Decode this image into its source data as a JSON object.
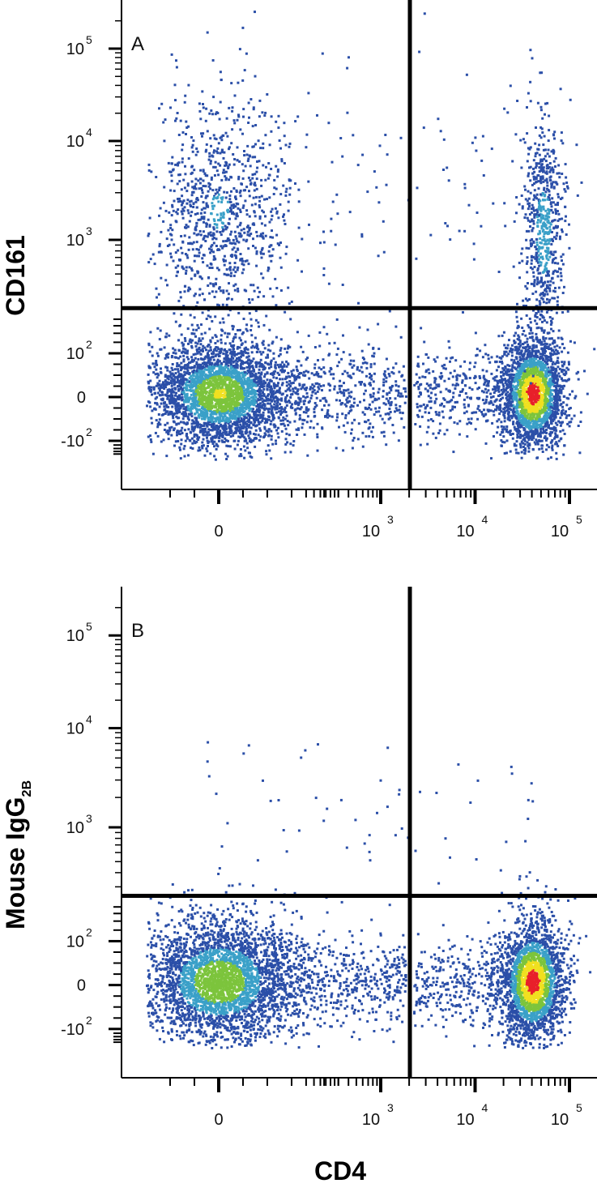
{
  "chart_data": [
    {
      "type": "scatter",
      "panel_label": "A",
      "xlabel": "CD4",
      "ylabel": "CD161",
      "ylabel_sub": "",
      "x_scale": "biexponential",
      "y_scale": "biexponential",
      "x_ticks": [
        {
          "value": 0,
          "base": "0",
          "exp": ""
        },
        {
          "value": 1000,
          "base": "10",
          "exp": "3"
        },
        {
          "value": 10000,
          "base": "10",
          "exp": "4"
        },
        {
          "value": 100000,
          "base": "10",
          "exp": "5"
        }
      ],
      "y_ticks": [
        {
          "value": -100,
          "base": "-10",
          "exp": "2"
        },
        {
          "value": 0,
          "base": "0",
          "exp": ""
        },
        {
          "value": 100,
          "base": "10",
          "exp": "2"
        },
        {
          "value": 1000,
          "base": "10",
          "exp": "3"
        },
        {
          "value": 10000,
          "base": "10",
          "exp": "4"
        },
        {
          "value": 100000,
          "base": "10",
          "exp": "5"
        }
      ],
      "quadrant_gate": {
        "x": 1800,
        "y": 250
      },
      "populations": [
        {
          "name": "CD4- CD161-",
          "x_center": 0,
          "y_center": 10,
          "density": "high"
        },
        {
          "name": "CD4- CD161+",
          "x_center": 0,
          "y_center": 2000,
          "density": "low"
        },
        {
          "name": "CD4+ CD161-",
          "x_center": 40000,
          "y_center": 10,
          "density": "very high"
        },
        {
          "name": "CD4+ CD161+",
          "x_center": 50000,
          "y_center": 1000,
          "density": "low"
        }
      ]
    },
    {
      "type": "scatter",
      "panel_label": "B",
      "xlabel": "CD4",
      "ylabel": "Mouse IgG",
      "ylabel_sub": "2B",
      "x_scale": "biexponential",
      "y_scale": "biexponential",
      "x_ticks": [
        {
          "value": 0,
          "base": "0",
          "exp": ""
        },
        {
          "value": 1000,
          "base": "10",
          "exp": "3"
        },
        {
          "value": 10000,
          "base": "10",
          "exp": "4"
        },
        {
          "value": 100000,
          "base": "10",
          "exp": "5"
        }
      ],
      "y_ticks": [
        {
          "value": -100,
          "base": "-10",
          "exp": "2"
        },
        {
          "value": 0,
          "base": "0",
          "exp": ""
        },
        {
          "value": 100,
          "base": "10",
          "exp": "2"
        },
        {
          "value": 1000,
          "base": "10",
          "exp": "3"
        },
        {
          "value": 10000,
          "base": "10",
          "exp": "4"
        },
        {
          "value": 100000,
          "base": "10",
          "exp": "5"
        }
      ],
      "quadrant_gate": {
        "x": 1800,
        "y": 250
      },
      "populations": [
        {
          "name": "CD4- isotype-",
          "x_center": 0,
          "y_center": 10,
          "density": "high"
        },
        {
          "name": "CD4+ isotype-",
          "x_center": 40000,
          "y_center": 10,
          "density": "very high"
        },
        {
          "name": "isotype+",
          "x_center": 100,
          "y_center": 1000,
          "density": "very sparse"
        }
      ]
    }
  ],
  "colors": {
    "low_density": "#2b4fa8",
    "mid_low": "#3aa0c8",
    "mid": "#7cc43c",
    "mid_high": "#f0e020",
    "high_density": "#e8202a",
    "axes": "#000000"
  }
}
